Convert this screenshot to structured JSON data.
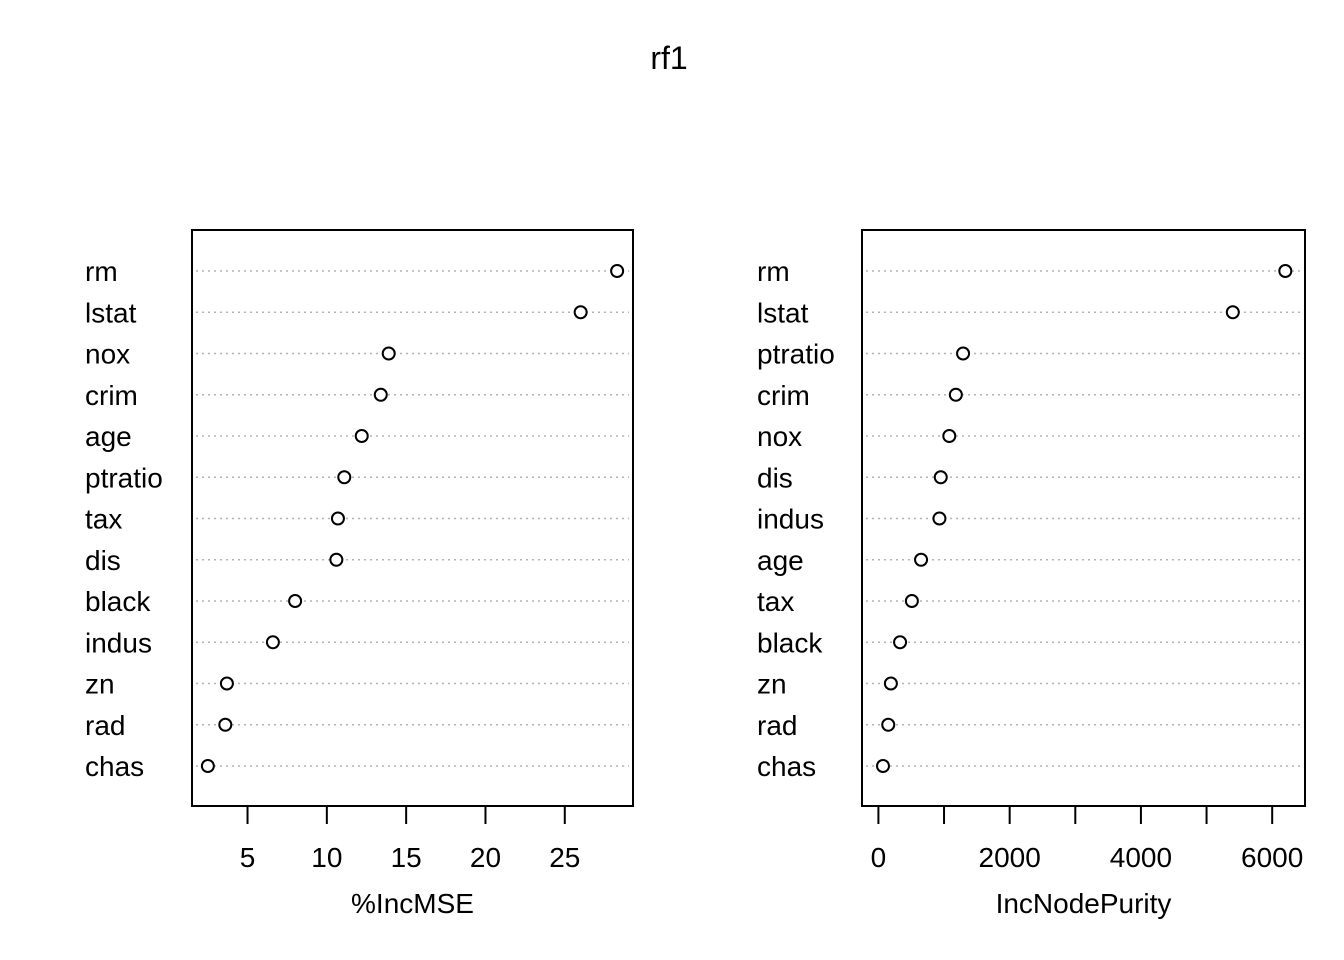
{
  "title": "rf1",
  "chart_data": [
    {
      "type": "scatter",
      "subtype": "dotchart",
      "xlabel": "%IncMSE",
      "xlim": [
        1.5,
        29.3
      ],
      "xticks": [
        "5",
        "10",
        "15",
        "20",
        "25"
      ],
      "grid": "dotted horizontal",
      "categories": [
        "rm",
        "lstat",
        "nox",
        "crim",
        "age",
        "ptratio",
        "tax",
        "dis",
        "black",
        "indus",
        "zn",
        "rad",
        "chas"
      ],
      "values": [
        28.3,
        26.0,
        13.9,
        13.4,
        12.2,
        11.1,
        10.7,
        10.6,
        8.0,
        6.6,
        3.7,
        3.6,
        2.5
      ]
    },
    {
      "type": "scatter",
      "subtype": "dotchart",
      "xlabel": "IncNodePurity",
      "xlim": [
        -250,
        6500
      ],
      "xticks": [
        "0",
        "2000",
        "4000",
        "6000"
      ],
      "minor_ticks": [
        1000,
        3000,
        5000
      ],
      "grid": "dotted horizontal",
      "categories": [
        "rm",
        "lstat",
        "ptratio",
        "crim",
        "nox",
        "dis",
        "indus",
        "age",
        "tax",
        "black",
        "zn",
        "rad",
        "chas"
      ],
      "values": [
        6200,
        5400,
        1290,
        1180,
        1080,
        950,
        930,
        650,
        510,
        330,
        190,
        150,
        70
      ]
    }
  ]
}
